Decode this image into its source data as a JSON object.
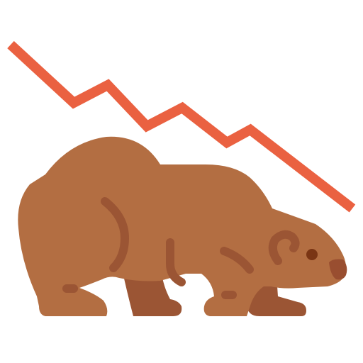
{
  "icon": {
    "name": "bear-market-icon",
    "trend": "down",
    "colors": {
      "background": "#ffffff",
      "trend_line": "#ea6141",
      "bear_body": "#b36e42",
      "bear_far_legs": "#9b5534",
      "bear_nose": "#994e30",
      "bear_eye": "#7a3514",
      "bear_detail": "#9b5534"
    }
  }
}
